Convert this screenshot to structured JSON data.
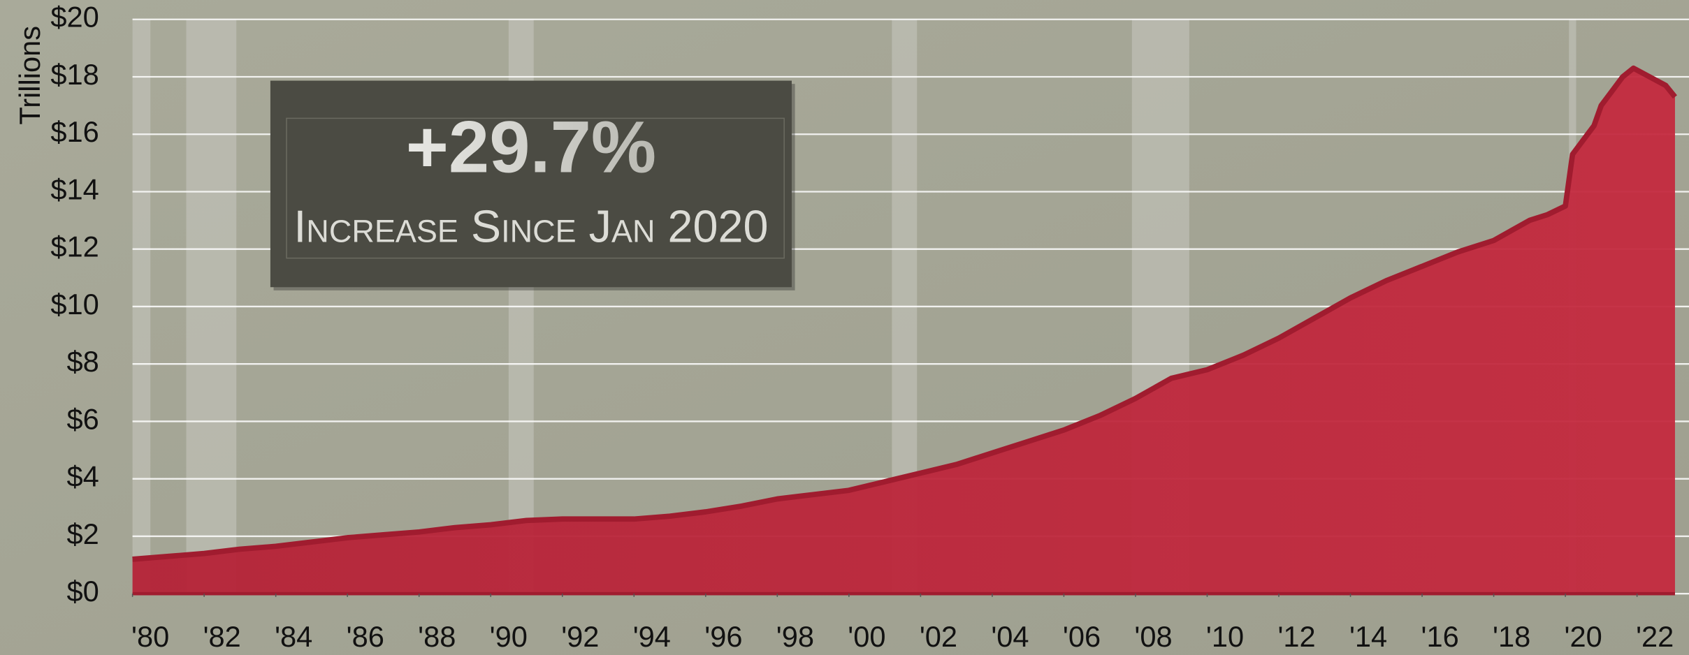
{
  "chart_data": {
    "type": "area",
    "ylabel": "Trillions",
    "annotation": "+29.7%",
    "annotation_subtitle": "Increase Since Jan 2020",
    "color": "#c42a3f",
    "line_color": "#a01c2f",
    "grid": true,
    "xlim": [
      1980.0,
      2023.06
    ],
    "ylim": [
      0,
      20
    ],
    "yticks": [
      {
        "value": 0,
        "label": "$0"
      },
      {
        "value": 2,
        "label": "$2"
      },
      {
        "value": 4,
        "label": "$4"
      },
      {
        "value": 6,
        "label": "$6"
      },
      {
        "value": 8,
        "label": "$8"
      },
      {
        "value": 10,
        "label": "$10"
      },
      {
        "value": 12,
        "label": "$12"
      },
      {
        "value": 14,
        "label": "$14"
      },
      {
        "value": 16,
        "label": "$16"
      },
      {
        "value": 18,
        "label": "$18"
      },
      {
        "value": 20,
        "label": "$20"
      }
    ],
    "xticks": [
      {
        "value": 1980,
        "label": "'80"
      },
      {
        "value": 1982,
        "label": "'82"
      },
      {
        "value": 1984,
        "label": "'84"
      },
      {
        "value": 1986,
        "label": "'86"
      },
      {
        "value": 1988,
        "label": "'88"
      },
      {
        "value": 1990,
        "label": "'90"
      },
      {
        "value": 1992,
        "label": "'92"
      },
      {
        "value": 1994,
        "label": "'94"
      },
      {
        "value": 1996,
        "label": "'96"
      },
      {
        "value": 1998,
        "label": "'98"
      },
      {
        "value": 2000,
        "label": "'00"
      },
      {
        "value": 2002,
        "label": "'02"
      },
      {
        "value": 2004,
        "label": "'04"
      },
      {
        "value": 2006,
        "label": "'06"
      },
      {
        "value": 2008,
        "label": "'08"
      },
      {
        "value": 2010,
        "label": "'10"
      },
      {
        "value": 2012,
        "label": "'12"
      },
      {
        "value": 2014,
        "label": "'14"
      },
      {
        "value": 2016,
        "label": "'16"
      },
      {
        "value": 2018,
        "label": "'18"
      },
      {
        "value": 2020,
        "label": "'20"
      },
      {
        "value": 2022,
        "label": "'22"
      }
    ],
    "recessions": [
      [
        1980.0,
        1980.5
      ],
      [
        1981.5,
        1982.9
      ],
      [
        1990.5,
        1991.2
      ],
      [
        2001.2,
        2001.9
      ],
      [
        2007.9,
        2009.5
      ],
      [
        2020.1,
        2020.3
      ]
    ],
    "x": [
      1980,
      1981,
      1982,
      1983,
      1984,
      1985,
      1986,
      1987,
      1988,
      1989,
      1990,
      1991,
      1992,
      1993,
      1994,
      1995,
      1996,
      1997,
      1998,
      1999,
      2000,
      2001,
      2002,
      2003,
      2004,
      2005,
      2006,
      2007,
      2008,
      2009,
      2010,
      2011,
      2012,
      2013,
      2014,
      2015,
      2016,
      2017,
      2018,
      2019,
      2019.5,
      2020.0,
      2020.2,
      2020.5,
      2020.8,
      2021.0,
      2021.3,
      2021.6,
      2021.9,
      2022.2,
      2022.5,
      2022.8,
      2023.06
    ],
    "values": [
      1.2,
      1.3,
      1.4,
      1.55,
      1.65,
      1.8,
      1.95,
      2.05,
      2.15,
      2.3,
      2.4,
      2.55,
      2.6,
      2.6,
      2.6,
      2.7,
      2.85,
      3.05,
      3.3,
      3.45,
      3.6,
      3.9,
      4.2,
      4.5,
      4.9,
      5.3,
      5.7,
      6.2,
      6.8,
      7.5,
      7.8,
      8.3,
      8.9,
      9.6,
      10.3,
      10.9,
      11.4,
      11.9,
      12.3,
      13.0,
      13.2,
      13.5,
      15.3,
      15.8,
      16.3,
      17.0,
      17.5,
      18.0,
      18.3,
      18.1,
      17.9,
      17.7,
      17.3
    ]
  }
}
